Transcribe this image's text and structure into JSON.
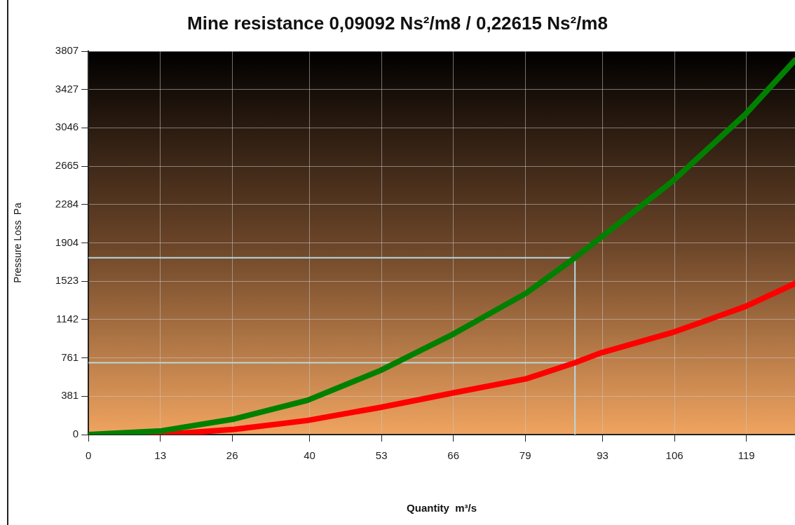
{
  "chart_data": {
    "type": "line",
    "title": "Mine resistance 0,09092 Ns²/m8 / 0,22615 Ns²/m8",
    "xlabel": "Quantity  m³/s",
    "ylabel": "Pressure Loss  Pa",
    "x": [
      0,
      13.2,
      26.4,
      39.6,
      52.8,
      66,
      79.2,
      88,
      92.4,
      105.6,
      118.8,
      127.8
    ],
    "series": [
      {
        "color": "#008000",
        "values": [
          0,
          37,
          155,
          340,
          636,
          998,
          1405,
          1756,
          1944,
          2513,
          3179,
          3718
        ]
      },
      {
        "color": "#ff0000",
        "values": [
          0,
          0,
          52,
          140,
          270,
          414,
          554,
          713,
          806,
          1013,
          1271,
          1500
        ]
      }
    ],
    "xlim": [
      0,
      127.8
    ],
    "ylim": [
      0,
      3807
    ],
    "xticks": [
      0,
      13,
      26,
      40,
      53,
      66,
      79,
      93,
      106,
      119
    ],
    "yticks": [
      0,
      381,
      761,
      1142,
      1523,
      1904,
      2284,
      2665,
      3046,
      3427,
      3807
    ],
    "ref_lines": [
      {
        "axis": "x",
        "value": 88,
        "color": "#b8d8e0"
      },
      {
        "axis": "y",
        "value": 1756,
        "color": "#b8d8e0"
      },
      {
        "axis": "y",
        "value": 713,
        "color": "#b8d8e0"
      }
    ],
    "grid": true,
    "legend": false,
    "marker": "none",
    "line_style": "solid"
  }
}
